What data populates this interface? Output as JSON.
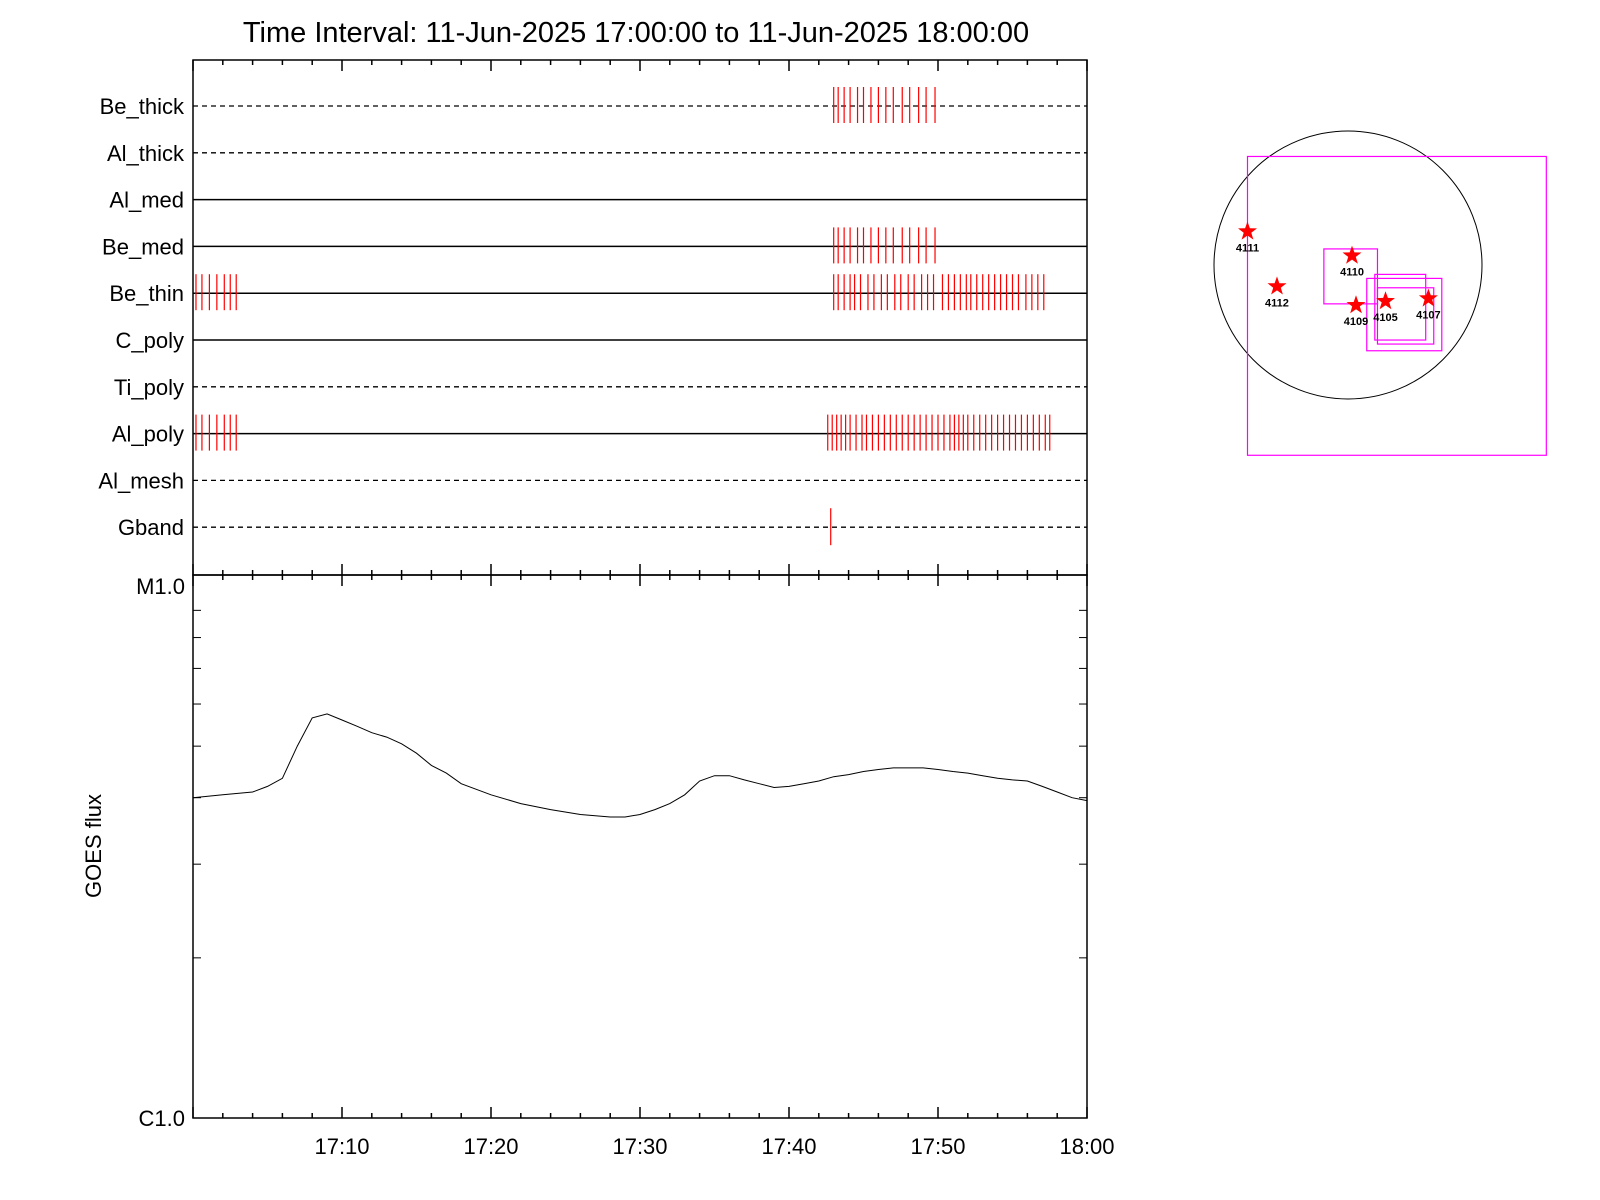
{
  "chart_data": [
    {
      "type": "event-raster",
      "title": "Time Interval: 11-Jun-2025 17:00:00 to 11-Jun-2025 18:00:00",
      "x_range_minutes": [
        0,
        60
      ],
      "channels": [
        {
          "name": "Be_thick",
          "line": "dashed",
          "events": [
            43.0,
            43.3,
            43.7,
            44.1,
            44.6,
            45.0,
            45.5,
            46.0,
            46.5,
            47.0,
            47.6,
            48.1,
            48.7,
            49.2,
            49.8
          ]
        },
        {
          "name": "Al_thick",
          "line": "dashed",
          "events": []
        },
        {
          "name": "Al_med",
          "line": "solid",
          "events": []
        },
        {
          "name": "Be_med",
          "line": "solid",
          "events": [
            43.0,
            43.3,
            43.7,
            44.1,
            44.6,
            45.0,
            45.5,
            46.0,
            46.5,
            47.0,
            47.6,
            48.1,
            48.7,
            49.2,
            49.8
          ]
        },
        {
          "name": "Be_thin",
          "line": "solid",
          "events": [
            0.2,
            0.6,
            1.1,
            1.6,
            2.1,
            2.5,
            2.9,
            43.0,
            43.3,
            43.7,
            44.1,
            44.4,
            44.8,
            45.3,
            45.7,
            46.2,
            46.6,
            47.1,
            47.5,
            48.0,
            48.4,
            48.9,
            49.3,
            49.7,
            50.3,
            50.7,
            51.1,
            51.5,
            51.9,
            52.2,
            52.6,
            53.0,
            53.4,
            53.8,
            54.2,
            54.6,
            55.0,
            55.4,
            55.9,
            56.3,
            56.7,
            57.1
          ]
        },
        {
          "name": "C_poly",
          "line": "solid",
          "events": []
        },
        {
          "name": "Ti_poly",
          "line": "dashed",
          "events": []
        },
        {
          "name": "Al_poly",
          "line": "solid",
          "events": [
            0.2,
            0.6,
            1.1,
            1.6,
            2.1,
            2.5,
            2.9,
            42.6,
            42.9,
            43.2,
            43.5,
            43.8,
            44.1,
            44.5,
            44.9,
            45.2,
            45.6,
            46.0,
            46.4,
            46.8,
            47.2,
            47.6,
            48.0,
            48.4,
            48.8,
            49.2,
            49.6,
            50.0,
            50.4,
            50.8,
            51.1,
            51.4,
            51.7,
            52.0,
            52.4,
            52.8,
            53.2,
            53.6,
            54.0,
            54.4,
            54.8,
            55.2,
            55.6,
            56.0,
            56.4,
            56.8,
            57.2,
            57.5
          ]
        },
        {
          "name": "Al_mesh",
          "line": "dashed",
          "events": []
        },
        {
          "name": "Gband",
          "line": "dashed",
          "events": [
            42.8
          ]
        }
      ]
    },
    {
      "type": "line",
      "ylabel": "GOES flux",
      "y_scale": "log",
      "y_ticks": [
        "M1.0",
        "C1.0"
      ],
      "ylim": [
        1e-06,
        1e-05
      ],
      "x_range_minutes": [
        0,
        60
      ],
      "x_ticks": [
        {
          "minute": 10,
          "label": "17:10"
        },
        {
          "minute": 20,
          "label": "17:20"
        },
        {
          "minute": 30,
          "label": "17:30"
        },
        {
          "minute": 40,
          "label": "17:40"
        },
        {
          "minute": 50,
          "label": "17:50"
        },
        {
          "minute": 60,
          "label": "18:00"
        }
      ],
      "series": [
        {
          "x": [
            0,
            2,
            4,
            5,
            6,
            7,
            8,
            9,
            10,
            11,
            12,
            13,
            14,
            15,
            16,
            17,
            18,
            20,
            22,
            24,
            26,
            28,
            29,
            30,
            31,
            32,
            33,
            34,
            35,
            36,
            37,
            38,
            39,
            40,
            41,
            42,
            43,
            44,
            45,
            46,
            47,
            48,
            49,
            50,
            51,
            52,
            53,
            54,
            55,
            56,
            57,
            58,
            59,
            60
          ],
          "y": [
            4e-06,
            4.05e-06,
            4.1e-06,
            4.2e-06,
            4.35e-06,
            5e-06,
            5.65e-06,
            5.75e-06,
            5.6e-06,
            5.45e-06,
            5.3e-06,
            5.2e-06,
            5.05e-06,
            4.85e-06,
            4.6e-06,
            4.45e-06,
            4.25e-06,
            4.05e-06,
            3.9e-06,
            3.8e-06,
            3.72e-06,
            3.68e-06,
            3.68e-06,
            3.72e-06,
            3.8e-06,
            3.9e-06,
            4.05e-06,
            4.3e-06,
            4.4e-06,
            4.4e-06,
            4.32e-06,
            4.25e-06,
            4.18e-06,
            4.2e-06,
            4.25e-06,
            4.3e-06,
            4.38e-06,
            4.42e-06,
            4.48e-06,
            4.52e-06,
            4.55e-06,
            4.55e-06,
            4.55e-06,
            4.52e-06,
            4.48e-06,
            4.45e-06,
            4.4e-06,
            4.35e-06,
            4.32e-06,
            4.3e-06,
            4.2e-06,
            4.1e-06,
            4e-06,
            3.95e-06
          ]
        }
      ]
    },
    {
      "type": "scatter",
      "points": [
        {
          "label": "4111",
          "x": -0.75,
          "y": 0.25
        },
        {
          "label": "4110",
          "x": 0.03,
          "y": 0.07
        },
        {
          "label": "4112",
          "x": -0.53,
          "y": -0.16
        },
        {
          "label": "4109",
          "x": 0.06,
          "y": -0.3
        },
        {
          "label": "4105",
          "x": 0.28,
          "y": -0.27
        },
        {
          "label": "4107",
          "x": 0.6,
          "y": -0.25
        }
      ],
      "boxes": [
        {
          "x0": -0.75,
          "y0": -1.42,
          "x1": 1.48,
          "y1": 0.81
        },
        {
          "x0": -0.18,
          "y0": -0.29,
          "x1": 0.22,
          "y1": 0.12
        },
        {
          "x0": 0.14,
          "y0": -0.64,
          "x1": 0.7,
          "y1": -0.1
        },
        {
          "x0": 0.22,
          "y0": -0.59,
          "x1": 0.64,
          "y1": -0.17
        },
        {
          "x0": 0.2,
          "y0": -0.56,
          "x1": 0.58,
          "y1": -0.07
        }
      ],
      "colors": {
        "box": "#ff00ff",
        "star": "#ff0000",
        "disk": "#000000"
      }
    }
  ]
}
